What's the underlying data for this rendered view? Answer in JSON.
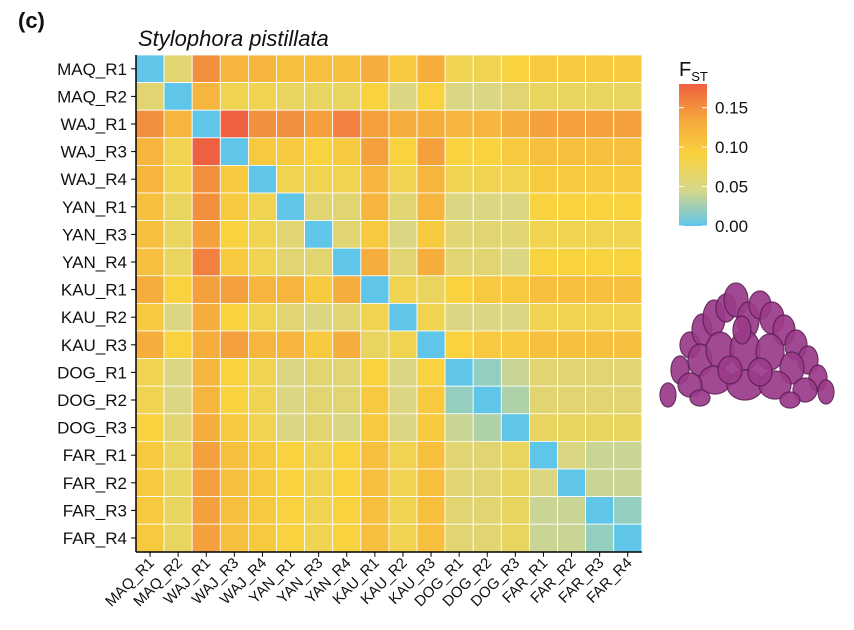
{
  "panel_label": "(c)",
  "chart_data": {
    "type": "heatmap",
    "title": "Stylophora pistillata",
    "categories": [
      "MAQ_R1",
      "MAQ_R2",
      "WAJ_R1",
      "WAJ_R3",
      "WAJ_R4",
      "YAN_R1",
      "YAN_R3",
      "YAN_R4",
      "KAU_R1",
      "KAU_R2",
      "KAU_R3",
      "DOG_R1",
      "DOG_R2",
      "DOG_R3",
      "FAR_R1",
      "FAR_R2",
      "FAR_R3",
      "FAR_R4"
    ],
    "values": [
      [
        0.0,
        0.06,
        0.15,
        0.12,
        0.12,
        0.11,
        0.11,
        0.11,
        0.13,
        0.1,
        0.13,
        0.08,
        0.08,
        0.09,
        0.1,
        0.1,
        0.1,
        0.1
      ],
      [
        0.06,
        0.0,
        0.12,
        0.08,
        0.08,
        0.07,
        0.07,
        0.07,
        0.09,
        0.05,
        0.09,
        0.05,
        0.05,
        0.06,
        0.07,
        0.07,
        0.07,
        0.07
      ],
      [
        0.15,
        0.12,
        0.0,
        0.18,
        0.15,
        0.15,
        0.14,
        0.16,
        0.14,
        0.13,
        0.13,
        0.12,
        0.12,
        0.13,
        0.14,
        0.14,
        0.14,
        0.14
      ],
      [
        0.12,
        0.08,
        0.18,
        0.0,
        0.1,
        0.1,
        0.09,
        0.1,
        0.14,
        0.09,
        0.14,
        0.09,
        0.09,
        0.1,
        0.11,
        0.11,
        0.11,
        0.11
      ],
      [
        0.12,
        0.08,
        0.15,
        0.1,
        0.0,
        0.08,
        0.08,
        0.08,
        0.12,
        0.08,
        0.12,
        0.08,
        0.08,
        0.08,
        0.1,
        0.1,
        0.1,
        0.1
      ],
      [
        0.11,
        0.07,
        0.15,
        0.1,
        0.08,
        0.0,
        0.06,
        0.06,
        0.12,
        0.06,
        0.12,
        0.05,
        0.05,
        0.05,
        0.09,
        0.09,
        0.09,
        0.09
      ],
      [
        0.11,
        0.07,
        0.14,
        0.09,
        0.08,
        0.06,
        0.0,
        0.06,
        0.1,
        0.05,
        0.1,
        0.06,
        0.06,
        0.06,
        0.08,
        0.08,
        0.08,
        0.08
      ],
      [
        0.11,
        0.07,
        0.16,
        0.1,
        0.08,
        0.06,
        0.06,
        0.0,
        0.13,
        0.06,
        0.13,
        0.06,
        0.06,
        0.05,
        0.09,
        0.09,
        0.09,
        0.09
      ],
      [
        0.13,
        0.09,
        0.14,
        0.14,
        0.12,
        0.12,
        0.1,
        0.13,
        0.0,
        0.08,
        0.07,
        0.09,
        0.1,
        0.1,
        0.11,
        0.11,
        0.11,
        0.11
      ],
      [
        0.1,
        0.05,
        0.13,
        0.09,
        0.08,
        0.06,
        0.05,
        0.06,
        0.08,
        0.0,
        0.08,
        0.05,
        0.05,
        0.05,
        0.08,
        0.08,
        0.08,
        0.08
      ],
      [
        0.13,
        0.09,
        0.13,
        0.14,
        0.12,
        0.12,
        0.1,
        0.13,
        0.07,
        0.08,
        0.0,
        0.09,
        0.1,
        0.1,
        0.11,
        0.11,
        0.11,
        0.11
      ],
      [
        0.08,
        0.05,
        0.12,
        0.09,
        0.08,
        0.05,
        0.06,
        0.06,
        0.09,
        0.05,
        0.09,
        0.0,
        0.02,
        0.04,
        0.06,
        0.06,
        0.06,
        0.06
      ],
      [
        0.08,
        0.05,
        0.12,
        0.09,
        0.08,
        0.05,
        0.06,
        0.06,
        0.1,
        0.05,
        0.1,
        0.02,
        0.0,
        0.03,
        0.06,
        0.06,
        0.06,
        0.06
      ],
      [
        0.09,
        0.06,
        0.13,
        0.1,
        0.08,
        0.05,
        0.06,
        0.05,
        0.1,
        0.05,
        0.1,
        0.04,
        0.03,
        0.0,
        0.07,
        0.07,
        0.07,
        0.07
      ],
      [
        0.1,
        0.07,
        0.14,
        0.11,
        0.1,
        0.09,
        0.08,
        0.09,
        0.11,
        0.08,
        0.11,
        0.06,
        0.06,
        0.07,
        0.0,
        0.05,
        0.04,
        0.04
      ],
      [
        0.1,
        0.07,
        0.14,
        0.11,
        0.1,
        0.09,
        0.08,
        0.09,
        0.11,
        0.08,
        0.11,
        0.06,
        0.06,
        0.07,
        0.05,
        0.0,
        0.04,
        0.04
      ],
      [
        0.1,
        0.07,
        0.14,
        0.11,
        0.1,
        0.09,
        0.08,
        0.09,
        0.11,
        0.08,
        0.11,
        0.06,
        0.06,
        0.07,
        0.04,
        0.04,
        0.0,
        0.02
      ],
      [
        0.1,
        0.07,
        0.14,
        0.11,
        0.1,
        0.09,
        0.08,
        0.09,
        0.11,
        0.08,
        0.11,
        0.06,
        0.06,
        0.07,
        0.04,
        0.04,
        0.02,
        0.0
      ]
    ],
    "colorbar": {
      "title_main": "F",
      "title_sub": "ST",
      "ticks": [
        "0.00",
        "0.05",
        "0.10",
        "0.15"
      ],
      "range": [
        0,
        0.18
      ],
      "colors": [
        "#5fc6ea",
        "#d6d78a",
        "#f8d23f",
        "#f5a83c",
        "#ef6040"
      ]
    },
    "grid": true,
    "legend_position": "right"
  },
  "illustration": {
    "name": "stylophora-coral-illustration",
    "color": "#9b3a8a"
  }
}
